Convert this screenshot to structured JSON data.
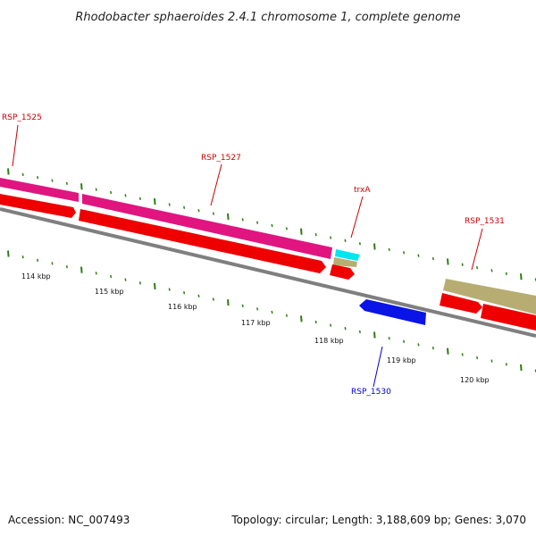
{
  "title": "Rhodobacter sphaeroides 2.4.1 chromosome 1, complete genome",
  "footer": {
    "accession": "Accession: NC_007493",
    "summary": "Topology: circular; Length: 3,188,609 bp; Genes: 3,070"
  },
  "colors": {
    "backbone": "#7f7f7f",
    "tick": "#2e7d14",
    "cds": "#ee0000",
    "gene_pink": "#e0157f",
    "gene_cyan": "#00e5f0",
    "gene_olive": "#b7ad72",
    "gene_blue": "#0a14e6",
    "label_red": "#cc0000",
    "label_blue": "#0000cc"
  },
  "scale_labels": [
    "114 kbp",
    "115 kbp",
    "116 kbp",
    "117 kbp",
    "118 kbp",
    "119 kbp",
    "120 kbp"
  ],
  "gene_labels": [
    {
      "text": "RSP_1525",
      "color": "label_red"
    },
    {
      "text": "RSP_1527",
      "color": "label_red"
    },
    {
      "text": "trxA",
      "color": "label_red"
    },
    {
      "text": "RSP_1531",
      "color": "label_red"
    },
    {
      "text": "RSP_1530",
      "color": "label_blue"
    }
  ]
}
